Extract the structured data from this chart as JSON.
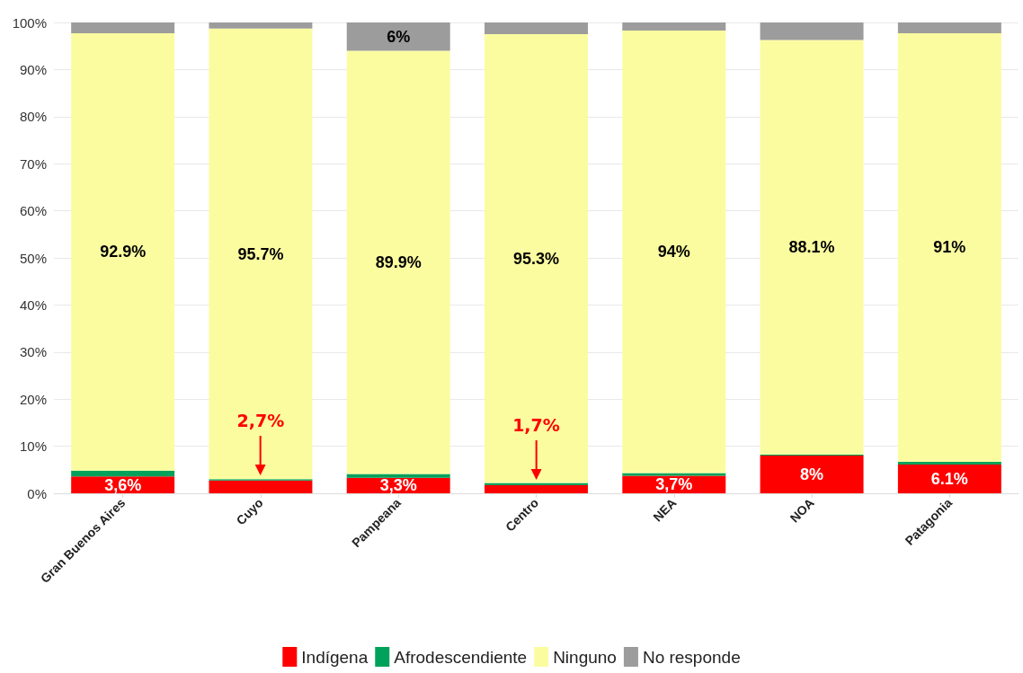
{
  "chart_data": {
    "type": "bar",
    "stacked": true,
    "categories": [
      "Gran Buenos Aires",
      "Cuyo",
      "Pampeana",
      "Centro",
      "NEA",
      "NOA",
      "Patagonia"
    ],
    "series": [
      {
        "name": "Indígena",
        "color": "#ff0000",
        "values": [
          3.6,
          2.7,
          3.3,
          1.7,
          3.7,
          8,
          6.1
        ],
        "value_labels": [
          "3,6%",
          null,
          "3,3%",
          null,
          "3,7%",
          "8%",
          "6.1%"
        ]
      },
      {
        "name": "Afrodescendiente",
        "color": "#00a15a",
        "values": [
          1.2,
          0.3,
          0.8,
          0.5,
          0.6,
          0.2,
          0.6
        ]
      },
      {
        "name": "Ninguno",
        "color": "#fbfca0",
        "values": [
          92.9,
          95.7,
          89.9,
          95.3,
          94,
          88.1,
          91
        ],
        "value_labels": [
          "92.9%",
          "95.7%",
          "89.9%",
          "95.3%",
          "94%",
          "88.1%",
          "91%"
        ]
      },
      {
        "name": "No responde",
        "color": "#9c9c9c",
        "values": [
          2.3,
          1.3,
          6,
          2.5,
          1.7,
          3.7,
          2.3
        ],
        "value_labels": [
          null,
          null,
          "6%",
          null,
          null,
          null,
          null
        ]
      }
    ],
    "ylim": [
      0,
      100
    ],
    "yticks": [
      {
        "value": 0,
        "label": "0%"
      },
      {
        "value": 10,
        "label": "10%"
      },
      {
        "value": 20,
        "label": "20%"
      },
      {
        "value": 30,
        "label": "30%"
      },
      {
        "value": 40,
        "label": "40%"
      },
      {
        "value": 50,
        "label": "50%"
      },
      {
        "value": 60,
        "label": "60%"
      },
      {
        "value": 70,
        "label": "70%"
      },
      {
        "value": 80,
        "label": "80%"
      },
      {
        "value": 90,
        "label": "90%"
      },
      {
        "value": 100,
        "label": "100%"
      }
    ],
    "annotations": [
      {
        "text": "2,7%",
        "x": "Cuyo",
        "y": 2.7
      },
      {
        "text": "1,7%",
        "x": "Centro",
        "y": 1.7
      }
    ],
    "grid": "y",
    "legend": "bottom"
  }
}
